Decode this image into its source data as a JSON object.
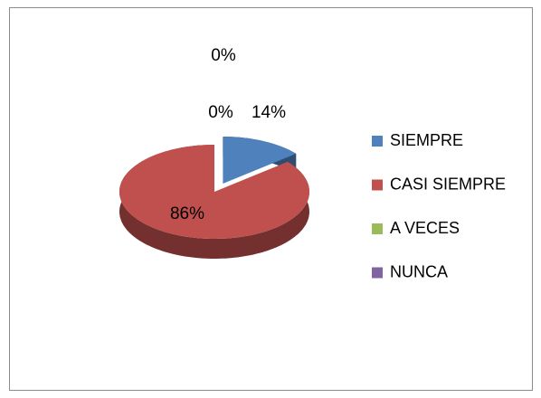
{
  "chart_data": {
    "type": "pie",
    "categories": [
      "SIEMPRE",
      "CASI SIEMPRE",
      "A VECES",
      "NUNCA"
    ],
    "values": [
      14,
      86,
      0,
      0
    ],
    "value_labels": [
      "14%",
      "86%",
      "0%",
      "0%"
    ],
    "colors": [
      "#4f81bd",
      "#c0504d",
      "#9bbb59",
      "#8064a2"
    ],
    "legend": "right"
  }
}
